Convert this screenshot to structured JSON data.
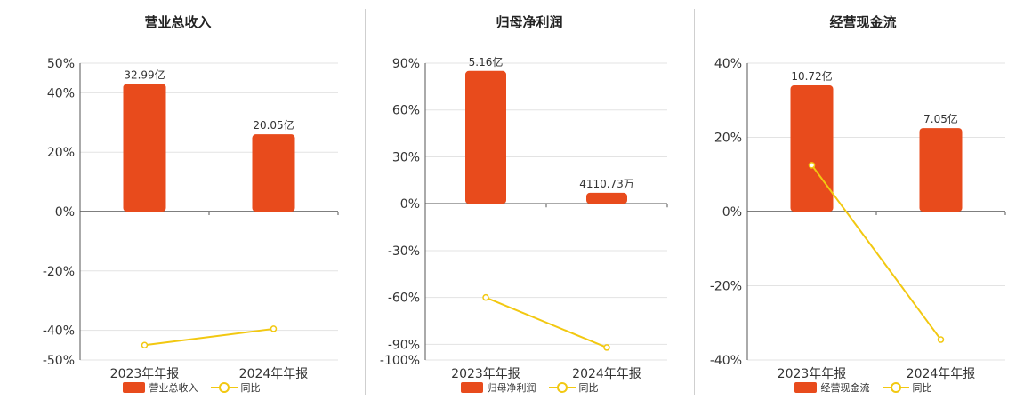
{
  "colors": {
    "bar": "#E84B1C",
    "line": "#F2C811",
    "grid": "#e3e3e3",
    "axis": "#555555"
  },
  "chart_data": [
    {
      "type": "bar",
      "title": "营业总收入",
      "categories": [
        "2023年年报",
        "2024年年报"
      ],
      "bar_labels": [
        "32.99亿",
        "20.05亿"
      ],
      "series": [
        {
          "name": "营业总收入",
          "type": "bar",
          "values": [
            43,
            26
          ]
        },
        {
          "name": "同比",
          "type": "line",
          "values": [
            -45,
            -39.5
          ]
        }
      ],
      "ylim": [
        -50,
        50
      ],
      "yticks": [
        50,
        40,
        20,
        0,
        -20,
        -40,
        -50
      ],
      "ytick_labels": [
        "50%",
        "40%",
        "20%",
        "0%",
        "-20%",
        "-40%",
        "-50%"
      ],
      "legend": "bottom"
    },
    {
      "type": "bar",
      "title": "归母净利润",
      "categories": [
        "2023年年报",
        "2024年年报"
      ],
      "bar_labels": [
        "5.16亿",
        "4110.73万"
      ],
      "series": [
        {
          "name": "归母净利润",
          "type": "bar",
          "values": [
            85,
            7
          ]
        },
        {
          "name": "同比",
          "type": "line",
          "values": [
            -60,
            -92
          ]
        }
      ],
      "ylim": [
        -100,
        90
      ],
      "yticks": [
        90,
        60,
        30,
        0,
        -30,
        -60,
        -90,
        -100
      ],
      "ytick_labels": [
        "90%",
        "60%",
        "30%",
        "0%",
        "-30%",
        "-60%",
        "-90%",
        "-100%"
      ],
      "legend": "bottom"
    },
    {
      "type": "bar",
      "title": "经营现金流",
      "categories": [
        "2023年年报",
        "2024年年报"
      ],
      "bar_labels": [
        "10.72亿",
        "7.05亿"
      ],
      "series": [
        {
          "name": "经营现金流",
          "type": "bar",
          "values": [
            34,
            22.5
          ]
        },
        {
          "name": "同比",
          "type": "line",
          "values": [
            12.5,
            -34.5
          ]
        }
      ],
      "ylim": [
        -40,
        40
      ],
      "yticks": [
        40,
        20,
        0,
        -20,
        -40
      ],
      "ytick_labels": [
        "40%",
        "20%",
        "0%",
        "-20%",
        "-40%"
      ],
      "legend": "bottom"
    }
  ]
}
